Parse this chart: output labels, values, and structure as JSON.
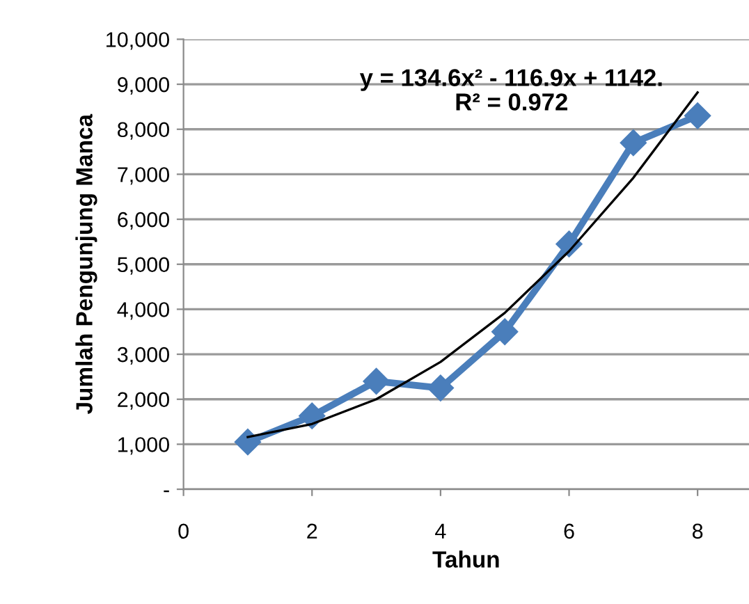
{
  "chart_data": {
    "type": "line",
    "xlabel": "Tahun",
    "ylabel": "Jumlah Pengunjung Manca",
    "series": [
      {
        "color": "#4a7ebb",
        "marker": "diamond",
        "x": [
          1,
          2,
          3,
          4,
          5,
          6,
          7,
          8
        ],
        "values": [
          1050,
          1630,
          2400,
          2250,
          3500,
          5450,
          7700,
          8300
        ]
      },
      {
        "color": "#000000",
        "marker": "none",
        "x": [
          1,
          2,
          3,
          4,
          5,
          6,
          7,
          8
        ],
        "values": [
          1160,
          1450,
          2000,
          2830,
          3920,
          5290,
          6920,
          8820
        ]
      }
    ],
    "annotations": [
      "y = 134.6x² - 116.9x + 1142.\nR² = 0.972"
    ],
    "xlim": [
      0,
      8.8
    ],
    "xticks": [
      0,
      2,
      4,
      6,
      8
    ],
    "ylim": [
      0,
      10000
    ],
    "yticks": [
      {
        "value": 0,
        "label": "-"
      },
      {
        "value": 1000,
        "label": "1,000"
      },
      {
        "value": 2000,
        "label": "2,000"
      },
      {
        "value": 3000,
        "label": "3,000"
      },
      {
        "value": 4000,
        "label": "4,000"
      },
      {
        "value": 5000,
        "label": "5,000"
      },
      {
        "value": 6000,
        "label": "6,000"
      },
      {
        "value": 7000,
        "label": "7,000"
      },
      {
        "value": 8000,
        "label": "8,000"
      },
      {
        "value": 9000,
        "label": "9,000"
      },
      {
        "value": 10000,
        "label": "10,000"
      }
    ],
    "grid": "y"
  }
}
